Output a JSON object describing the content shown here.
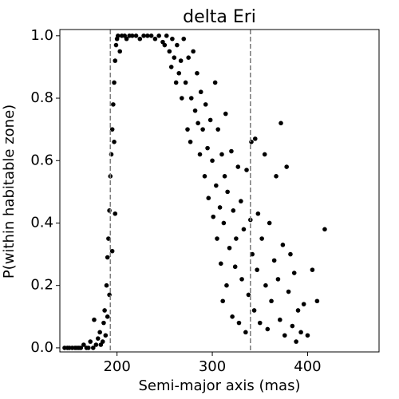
{
  "chart_data": {
    "type": "scatter",
    "title": "delta Eri",
    "xlabel": "Semi-major axis (mas)",
    "ylabel": "P(within habitable zone)",
    "xlim": [
      140,
      475
    ],
    "ylim": [
      -0.013,
      1.02
    ],
    "xticks": [
      200,
      300,
      400
    ],
    "yticks": [
      {
        "value": 0,
        "label": "0.0"
      },
      0.2,
      0.4,
      0.6,
      0.8,
      {
        "value": 1,
        "label": "1.0"
      }
    ],
    "vlines": [
      193,
      340
    ],
    "vline_color": "#808080",
    "color": "#000000",
    "x": [
      145,
      148,
      150,
      153,
      156,
      158,
      160,
      162,
      165,
      168,
      170,
      172,
      175,
      176,
      178,
      180,
      182,
      183,
      185,
      186,
      187,
      188,
      189,
      190,
      190,
      191,
      192,
      192,
      193,
      194,
      195,
      195,
      196,
      197,
      197,
      198,
      198,
      199,
      200,
      201,
      203,
      205,
      208,
      210,
      213,
      216,
      220,
      224,
      228,
      232,
      236,
      240,
      244,
      248,
      250,
      252,
      255,
      257,
      258,
      260,
      262,
      263,
      265,
      267,
      268,
      270,
      272,
      274,
      275,
      277,
      278,
      280,
      282,
      284,
      285,
      287,
      288,
      290,
      292,
      293,
      295,
      296,
      298,
      300,
      301,
      303,
      304,
      305,
      306,
      308,
      309,
      310,
      311,
      312,
      313,
      314,
      315,
      316,
      318,
      320,
      321,
      322,
      324,
      325,
      327,
      328,
      330,
      331,
      333,
      335,
      336,
      338,
      340,
      341,
      342,
      344,
      345,
      347,
      348,
      350,
      352,
      355,
      356,
      358,
      360,
      362,
      365,
      367,
      369,
      371,
      372,
      374,
      376,
      378,
      380,
      382,
      384,
      386,
      388,
      390,
      393,
      396,
      400,
      405,
      410,
      418
    ],
    "values": [
      0,
      0,
      0,
      0,
      0,
      0,
      0,
      0,
      0.01,
      0,
      0,
      0.02,
      0,
      0.09,
      0.01,
      0.03,
      0.05,
      0.01,
      0.02,
      0.08,
      0.12,
      0.04,
      0.2,
      0.1,
      0.29,
      0.35,
      0.17,
      0.44,
      0.55,
      0.62,
      0.7,
      0.31,
      0.78,
      0.85,
      0.66,
      0.92,
      0.43,
      0.97,
      0.99,
      1.0,
      0.95,
      1.0,
      1.0,
      0.99,
      1.0,
      1.0,
      1.0,
      0.99,
      1.0,
      1.0,
      1.0,
      0.99,
      1.0,
      0.98,
      0.97,
      1.0,
      0.95,
      0.9,
      0.99,
      0.93,
      0.85,
      0.97,
      0.88,
      0.92,
      0.8,
      0.99,
      0.85,
      0.7,
      0.93,
      0.66,
      0.8,
      0.95,
      0.76,
      0.88,
      0.72,
      0.62,
      0.82,
      0.7,
      0.55,
      0.78,
      0.64,
      0.48,
      0.73,
      0.6,
      0.42,
      0.85,
      0.52,
      0.35,
      0.7,
      0.45,
      0.27,
      0.62,
      0.15,
      0.4,
      0.55,
      0.75,
      0.2,
      0.5,
      0.32,
      0.63,
      0.1,
      0.44,
      0.26,
      0.35,
      0.58,
      0.08,
      0.47,
      0.22,
      0.38,
      0.05,
      0.57,
      0.17,
      0.41,
      0.66,
      0.3,
      0.12,
      0.67,
      0.25,
      0.43,
      0.08,
      0.35,
      0.62,
      0.2,
      0.06,
      0.4,
      0.15,
      0.28,
      0.55,
      0.22,
      0.09,
      0.72,
      0.33,
      0.04,
      0.58,
      0.18,
      0.3,
      0.07,
      0.24,
      0.02,
      0.12,
      0.05,
      0.14,
      0.04,
      0.25,
      0.15,
      0.38
    ]
  }
}
